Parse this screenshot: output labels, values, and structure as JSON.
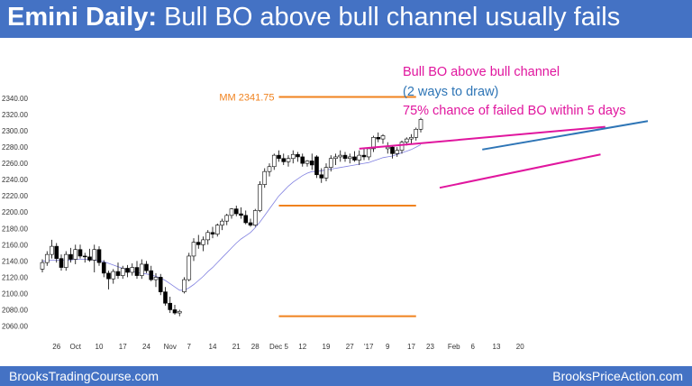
{
  "title": {
    "bold": "Emini Daily:",
    "rest": "Bull BO above bull channel usually fails"
  },
  "annotations": [
    {
      "text": "Bull BO above bull channel",
      "color": "#e0169e"
    },
    {
      "text": "(2 ways to draw)",
      "color": "#2e75b6"
    },
    {
      "text": "75% chance of failed BO within 5 days",
      "color": "#e0169e"
    }
  ],
  "mm_label": "MM 2341.75",
  "footer": {
    "left": "BrooksTradingCourse.com",
    "right": "BrooksPriceAction.com"
  },
  "colors": {
    "banner": "#4472c4",
    "orange": "#f0821e",
    "magenta": "#e0169e",
    "blue": "#2e75b6",
    "ema": "#8080e0"
  },
  "chart_data": {
    "type": "candlestick",
    "title": "Emini Daily:",
    "y_ticks": [
      2060,
      2080,
      2100,
      2120,
      2140,
      2160,
      2180,
      2200,
      2220,
      2240,
      2260,
      2280,
      2300,
      2320,
      2340
    ],
    "y_tick_labels": [
      "2060.00",
      "2080.00",
      "2100.00",
      "2120.00",
      "2140.00",
      "2160.00",
      "2180.00",
      "2200.00",
      "2220.00",
      "2240.00",
      "2260.00",
      "2280.00",
      "2300.00",
      "2320.00",
      "2340.00"
    ],
    "ylim": [
      2045,
      2350
    ],
    "x_ticks": [
      {
        "label": "26",
        "bar": 3
      },
      {
        "label": "Oct",
        "bar": 7
      },
      {
        "label": "10",
        "bar": 12
      },
      {
        "label": "17",
        "bar": 17
      },
      {
        "label": "24",
        "bar": 22
      },
      {
        "label": "Nov",
        "bar": 27
      },
      {
        "label": "7",
        "bar": 31
      },
      {
        "label": "14",
        "bar": 36
      },
      {
        "label": "21",
        "bar": 41
      },
      {
        "label": "28",
        "bar": 45
      },
      {
        "label": "Dec 5",
        "bar": 50
      },
      {
        "label": "12",
        "bar": 55
      },
      {
        "label": "19",
        "bar": 60
      },
      {
        "label": "27",
        "bar": 65
      },
      {
        "label": "'17",
        "bar": 69
      },
      {
        "label": "9",
        "bar": 73
      },
      {
        "label": "17",
        "bar": 78
      },
      {
        "label": "23",
        "bar": 82
      },
      {
        "label": "Feb",
        "bar": 87
      },
      {
        "label": "6",
        "bar": 91
      },
      {
        "label": "13",
        "bar": 96
      },
      {
        "label": "20",
        "bar": 101
      }
    ],
    "ohlc": [
      [
        2130,
        2142,
        2126,
        2138
      ],
      [
        2138,
        2152,
        2134,
        2148
      ],
      [
        2148,
        2166,
        2143,
        2158
      ],
      [
        2158,
        2162,
        2138,
        2143
      ],
      [
        2143,
        2148,
        2128,
        2132
      ],
      [
        2132,
        2152,
        2128,
        2148
      ],
      [
        2148,
        2156,
        2138,
        2142
      ],
      [
        2142,
        2160,
        2136,
        2154
      ],
      [
        2154,
        2160,
        2143,
        2146
      ],
      [
        2146,
        2150,
        2138,
        2145
      ],
      [
        2145,
        2155,
        2139,
        2141
      ],
      [
        2141,
        2160,
        2126,
        2154
      ],
      [
        2154,
        2158,
        2134,
        2138
      ],
      [
        2138,
        2141,
        2120,
        2125
      ],
      [
        2125,
        2128,
        2105,
        2118
      ],
      [
        2118,
        2130,
        2112,
        2127
      ],
      [
        2127,
        2138,
        2118,
        2122
      ],
      [
        2122,
        2134,
        2118,
        2131
      ],
      [
        2131,
        2135,
        2120,
        2126
      ],
      [
        2126,
        2137,
        2122,
        2132
      ],
      [
        2132,
        2140,
        2118,
        2122
      ],
      [
        2122,
        2142,
        2118,
        2136
      ],
      [
        2136,
        2140,
        2125,
        2128
      ],
      [
        2128,
        2134,
        2115,
        2117
      ],
      [
        2117,
        2125,
        2108,
        2120
      ],
      [
        2120,
        2124,
        2098,
        2102
      ],
      [
        2102,
        2108,
        2085,
        2088
      ],
      [
        2088,
        2096,
        2076,
        2080
      ],
      [
        2080,
        2086,
        2074,
        2076
      ],
      [
        2076,
        2080,
        2072,
        2078
      ],
      [
        2102,
        2120,
        2100,
        2117
      ],
      [
        2117,
        2150,
        2115,
        2146
      ],
      [
        2146,
        2168,
        2140,
        2163
      ],
      [
        2163,
        2172,
        2155,
        2160
      ],
      [
        2160,
        2170,
        2152,
        2166
      ],
      [
        2166,
        2178,
        2160,
        2175
      ],
      [
        2175,
        2182,
        2168,
        2173
      ],
      [
        2173,
        2186,
        2170,
        2184
      ],
      [
        2184,
        2192,
        2178,
        2189
      ],
      [
        2189,
        2198,
        2184,
        2196
      ],
      [
        2196,
        2205,
        2192,
        2204
      ],
      [
        2204,
        2208,
        2195,
        2198
      ],
      [
        2198,
        2206,
        2192,
        2196
      ],
      [
        2196,
        2202,
        2185,
        2187
      ],
      [
        2187,
        2192,
        2182,
        2184
      ],
      [
        2184,
        2204,
        2182,
        2202
      ],
      [
        2202,
        2238,
        2200,
        2234
      ],
      [
        2234,
        2254,
        2230,
        2250
      ],
      [
        2250,
        2260,
        2244,
        2256
      ],
      [
        2256,
        2272,
        2252,
        2270
      ],
      [
        2270,
        2276,
        2262,
        2266
      ],
      [
        2266,
        2272,
        2258,
        2262
      ],
      [
        2262,
        2270,
        2256,
        2266
      ],
      [
        2266,
        2276,
        2260,
        2271
      ],
      [
        2271,
        2274,
        2262,
        2268
      ],
      [
        2268,
        2272,
        2256,
        2260
      ],
      [
        2260,
        2264,
        2256,
        2263
      ],
      [
        2263,
        2272,
        2252,
        2258
      ],
      [
        2268,
        2270,
        2242,
        2246
      ],
      [
        2246,
        2254,
        2236,
        2242
      ],
      [
        2242,
        2260,
        2238,
        2255
      ],
      [
        2255,
        2270,
        2250,
        2266
      ],
      [
        2266,
        2272,
        2258,
        2268
      ],
      [
        2268,
        2276,
        2262,
        2270
      ],
      [
        2270,
        2274,
        2262,
        2266
      ],
      [
        2266,
        2272,
        2260,
        2268
      ],
      [
        2268,
        2275,
        2262,
        2264
      ],
      [
        2264,
        2276,
        2258,
        2270
      ],
      [
        2270,
        2278,
        2264,
        2268
      ],
      [
        2268,
        2280,
        2264,
        2278
      ],
      [
        2278,
        2294,
        2274,
        2292
      ],
      [
        2292,
        2298,
        2286,
        2290
      ],
      [
        2290,
        2296,
        2284,
        2294
      ],
      [
        2278,
        2286,
        2272,
        2280
      ],
      [
        2280,
        2282,
        2266,
        2272
      ],
      [
        2272,
        2280,
        2268,
        2276
      ],
      [
        2276,
        2288,
        2272,
        2286
      ],
      [
        2286,
        2292,
        2282,
        2290
      ],
      [
        2290,
        2296,
        2284,
        2292
      ],
      [
        2292,
        2304,
        2288,
        2302
      ],
      [
        2302,
        2316,
        2298,
        2314
      ]
    ],
    "ema20": [
      2140,
      2140,
      2141,
      2141,
      2141,
      2141,
      2141,
      2142,
      2142,
      2142,
      2142,
      2141,
      2140,
      2139,
      2137,
      2135,
      2133,
      2131,
      2129,
      2127,
      2126,
      2125,
      2124,
      2123,
      2121,
      2119,
      2116,
      2112,
      2108,
      2104,
      2104,
      2107,
      2111,
      2116,
      2121,
      2127,
      2132,
      2138,
      2144,
      2150,
      2156,
      2162,
      2167,
      2171,
      2175,
      2181,
      2188,
      2196,
      2204,
      2212,
      2220,
      2226,
      2232,
      2237,
      2241,
      2245,
      2248,
      2250,
      2250,
      2251,
      2252,
      2253,
      2254,
      2255,
      2256,
      2257,
      2258,
      2259,
      2260,
      2261,
      2263,
      2265,
      2267,
      2268,
      2269,
      2271,
      2273,
      2275,
      2277,
      2280,
      2283
    ],
    "lines": [
      {
        "name": "mm-target",
        "color": "#f0821e",
        "points": [
          [
            50,
            2341.75
          ],
          [
            79,
            2341.75
          ]
        ]
      },
      {
        "name": "range-top",
        "color": "#f0821e",
        "points": [
          [
            50,
            2208
          ],
          [
            79,
            2208
          ]
        ]
      },
      {
        "name": "range-bottom",
        "color": "#f0821e",
        "points": [
          [
            50,
            2072
          ],
          [
            79,
            2072
          ]
        ]
      },
      {
        "name": "channel-top-magenta",
        "color": "#e0169e",
        "points": [
          [
            67,
            2278
          ],
          [
            119,
            2305
          ]
        ]
      },
      {
        "name": "channel-bottom-magenta",
        "color": "#e0169e",
        "points": [
          [
            84,
            2230
          ],
          [
            118,
            2271
          ]
        ]
      },
      {
        "name": "channel-top-blue",
        "color": "#2e75b6",
        "points": [
          [
            93,
            2277
          ],
          [
            128,
            2312
          ]
        ]
      }
    ]
  }
}
